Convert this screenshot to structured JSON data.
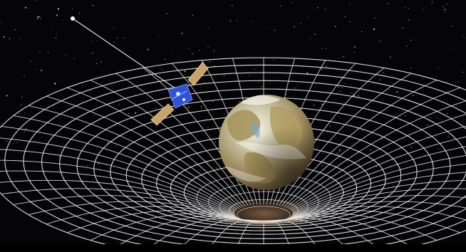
{
  "scene": {
    "subject": "spacetime-curvature-illustration",
    "colors": {
      "background": "#050508",
      "grid": "#f2f2f2",
      "earth_ocean": "#8fb1c7",
      "earth_land": "#b8a06a",
      "satellite_panel": "#c9a46a",
      "satellite_body": "#2f53d6"
    },
    "elements": [
      "starfield",
      "curved-spacetime-grid",
      "earth",
      "satellite"
    ]
  }
}
